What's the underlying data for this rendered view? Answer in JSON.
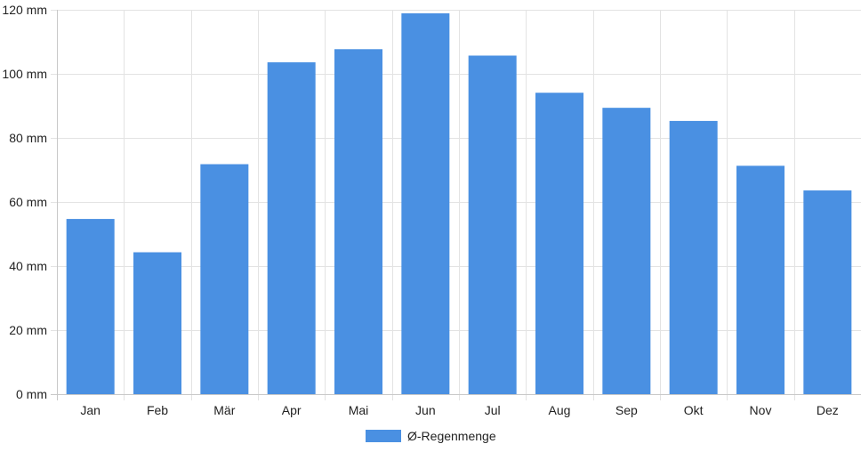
{
  "chart_data": {
    "type": "bar",
    "categories": [
      "Jan",
      "Feb",
      "Mär",
      "Apr",
      "Mai",
      "Jun",
      "Jul",
      "Aug",
      "Sep",
      "Okt",
      "Nov",
      "Dez"
    ],
    "series": [
      {
        "name": "Ø-Regenmenge",
        "values": [
          54.7,
          44.3,
          71.8,
          103.6,
          107.7,
          118.9,
          105.7,
          94.1,
          89.4,
          85.3,
          71.3,
          63.6
        ],
        "color": "#4a90e2"
      }
    ],
    "y_unit": "mm",
    "ylim": [
      0,
      120
    ],
    "y_ticks": [
      0,
      20,
      40,
      60,
      80,
      100,
      120
    ],
    "grid": true,
    "legend_position": "bottom"
  }
}
